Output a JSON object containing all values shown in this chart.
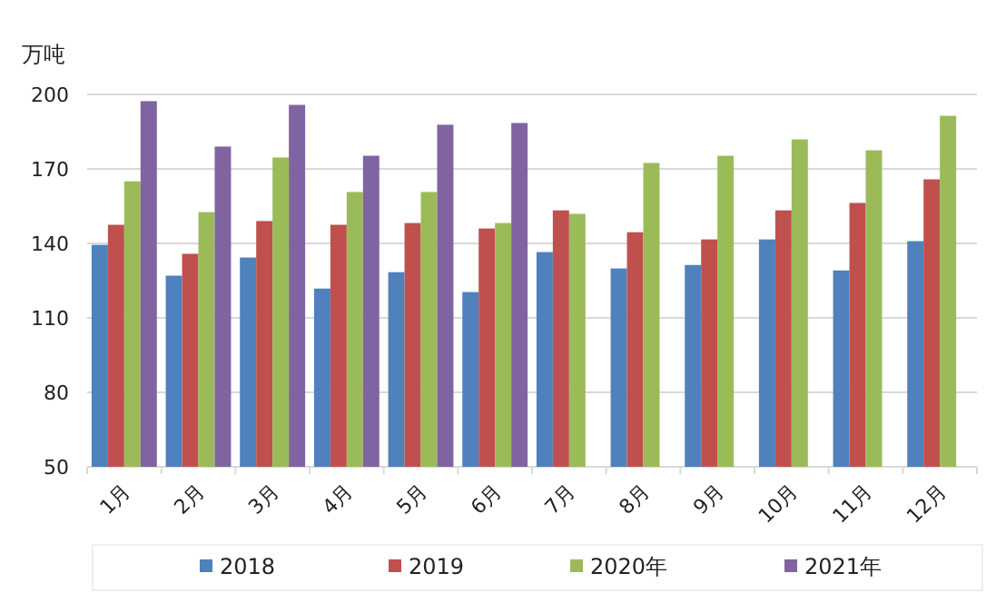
{
  "chart_data": {
    "type": "bar",
    "ylabel": "万吨",
    "categories": [
      "1月",
      "2月",
      "3月",
      "4月",
      "5月",
      "6月",
      "7月",
      "8月",
      "9月",
      "10月",
      "11月",
      "12月"
    ],
    "ylim": [
      50,
      200
    ],
    "yticks": [
      50,
      80,
      110,
      140,
      170,
      200
    ],
    "grid": "y",
    "legend": "bottom",
    "series": [
      {
        "name": "2018",
        "color": "#4f81bd",
        "values": [
          139.4,
          127,
          134.3,
          121.8,
          128.4,
          120.4,
          136.5,
          129.9,
          131.3,
          141.6,
          129.1,
          140.9
        ]
      },
      {
        "name": "2019",
        "color": "#c0504d",
        "values": [
          147.5,
          135.8,
          149,
          147.5,
          148.2,
          146,
          153.3,
          144.5,
          141.6,
          153.3,
          156.3,
          165.8
        ]
      },
      {
        "name": "2020年",
        "color": "#9bbb59",
        "values": [
          165,
          152.6,
          174.6,
          160.7,
          160.7,
          148.2,
          151.9,
          172.4,
          175.3,
          181.9,
          177.5,
          191.4
        ]
      },
      {
        "name": "2021年",
        "color": "#8064a2",
        "values": [
          197.3,
          179,
          195.8,
          175.3,
          187.8,
          188.5,
          null,
          null,
          null,
          null,
          null,
          null
        ]
      }
    ]
  }
}
